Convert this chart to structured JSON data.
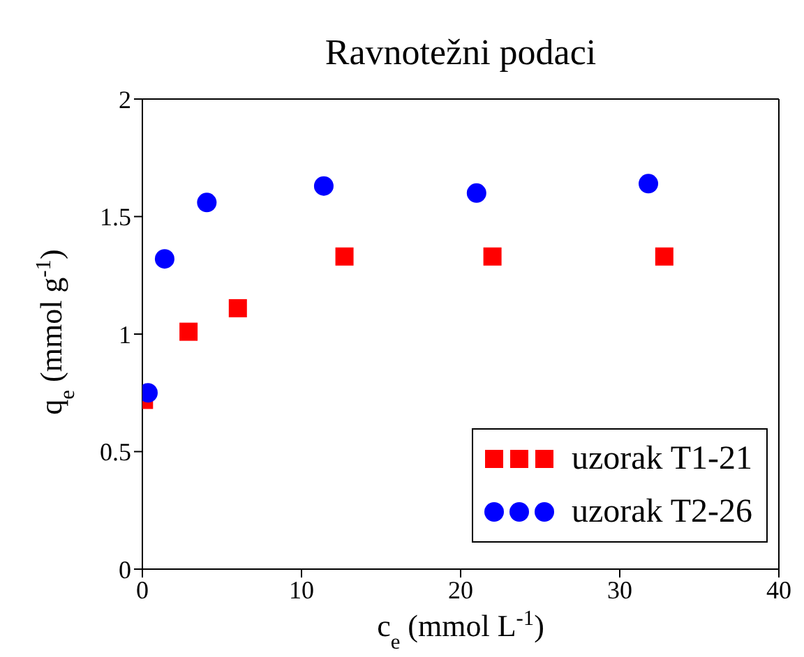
{
  "chart_data": {
    "type": "scatter",
    "title": "Ravnotežni podaci",
    "xlabel": "c$_{e}$ (mmol L$^{-1}$)",
    "ylabel": "q$_{e}$ (mmol g$^{-1}$)",
    "xlim": [
      0,
      40
    ],
    "xticks": [
      0,
      10,
      20,
      30,
      40
    ],
    "ylim": [
      0,
      2
    ],
    "yticks": [
      0,
      0.5,
      1,
      1.5,
      2
    ],
    "grid": false,
    "legend": "bottom right",
    "series": [
      {
        "name": "uzorak T1-21",
        "color": "#ff0000",
        "marker": "square",
        "x": [
          0.1,
          2.9,
          6.0,
          12.7,
          22.0,
          32.8
        ],
        "values": [
          0.72,
          1.01,
          1.11,
          1.33,
          1.33,
          1.33
        ]
      },
      {
        "name": "uzorak T2-26",
        "color": "#0000ff",
        "marker": "circle",
        "x": [
          0.35,
          1.4,
          4.05,
          11.4,
          21.0,
          31.8
        ],
        "values": [
          0.75,
          1.32,
          1.56,
          1.63,
          1.6,
          1.64
        ]
      }
    ]
  }
}
